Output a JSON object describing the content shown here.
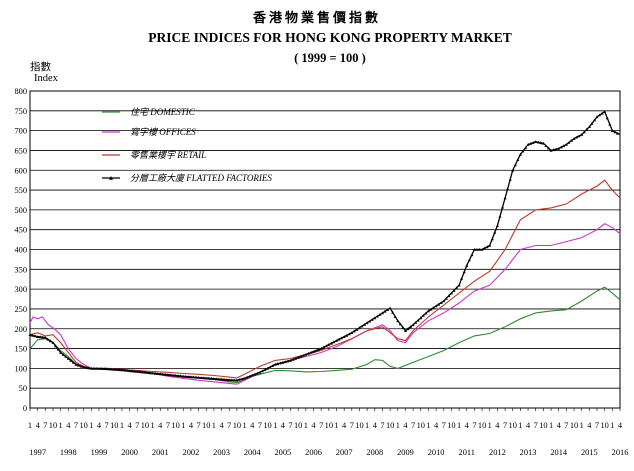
{
  "header": {
    "title_cn": "香港物業售價指數",
    "title_en": "PRICE INDICES FOR HONG KONG PROPERTY MARKET",
    "subtitle": "( 1999 = 100 )"
  },
  "axis": {
    "ylabel_cn": "指數",
    "ylabel_en": "Index"
  },
  "chart_data": {
    "type": "line",
    "title": "PRICE INDICES FOR HONG KONG PROPERTY MARKET",
    "subtitle": "( 1999 = 100 )",
    "ylabel": "Index",
    "xlabel": "",
    "ylim": [
      0,
      800
    ],
    "yticks": [
      0,
      50,
      100,
      150,
      200,
      250,
      300,
      350,
      400,
      450,
      500,
      550,
      600,
      650,
      700,
      750,
      800
    ],
    "xlim": [
      1997.0,
      2016.25
    ],
    "x_years": [
      "1997",
      "1998",
      "1999",
      "2000",
      "2001",
      "2002",
      "2003",
      "2004",
      "2005",
      "2006",
      "2007",
      "2008",
      "2009",
      "2010",
      "2011",
      "2012",
      "2013",
      "2014",
      "2015",
      "2016"
    ],
    "x_month_ticks": [
      "1",
      "4",
      "7",
      "10"
    ],
    "grid": "horizontal",
    "legend_position": "top-left",
    "series": [
      {
        "name": "DOMESTIC",
        "name_cn": "住宅",
        "color": "#2e8b2e",
        "marker": "none",
        "points": [
          [
            1997.0,
            150
          ],
          [
            1997.25,
            172
          ],
          [
            1997.5,
            175
          ],
          [
            1997.75,
            165
          ],
          [
            1998.0,
            145
          ],
          [
            1998.25,
            130
          ],
          [
            1998.5,
            110
          ],
          [
            1998.75,
            102
          ],
          [
            1999.0,
            100
          ],
          [
            1999.5,
            100
          ],
          [
            2000.0,
            96
          ],
          [
            2000.5,
            93
          ],
          [
            2001.0,
            88
          ],
          [
            2001.5,
            84
          ],
          [
            2002.0,
            80
          ],
          [
            2002.5,
            76
          ],
          [
            2003.0,
            72
          ],
          [
            2003.5,
            66
          ],
          [
            2003.75,
            64
          ],
          [
            2004.0,
            70
          ],
          [
            2004.25,
            80
          ],
          [
            2004.5,
            85
          ],
          [
            2005.0,
            95
          ],
          [
            2005.5,
            94
          ],
          [
            2006.0,
            91
          ],
          [
            2006.5,
            92
          ],
          [
            2007.0,
            95
          ],
          [
            2007.5,
            98
          ],
          [
            2008.0,
            110
          ],
          [
            2008.25,
            122
          ],
          [
            2008.5,
            120
          ],
          [
            2008.75,
            105
          ],
          [
            2009.0,
            100
          ],
          [
            2009.5,
            115
          ],
          [
            2010.0,
            130
          ],
          [
            2010.5,
            145
          ],
          [
            2011.0,
            165
          ],
          [
            2011.5,
            182
          ],
          [
            2012.0,
            188
          ],
          [
            2012.5,
            205
          ],
          [
            2013.0,
            225
          ],
          [
            2013.5,
            240
          ],
          [
            2014.0,
            245
          ],
          [
            2014.5,
            248
          ],
          [
            2015.0,
            270
          ],
          [
            2015.5,
            295
          ],
          [
            2015.75,
            305
          ],
          [
            2016.0,
            290
          ],
          [
            2016.25,
            273
          ]
        ]
      },
      {
        "name": "OFFICES",
        "name_cn": "寫字樓",
        "color": "#cc33cc",
        "marker": "none",
        "points": [
          [
            1997.0,
            215
          ],
          [
            1997.1,
            230
          ],
          [
            1997.25,
            225
          ],
          [
            1997.4,
            230
          ],
          [
            1997.6,
            210
          ],
          [
            1997.8,
            200
          ],
          [
            1998.0,
            185
          ],
          [
            1998.25,
            150
          ],
          [
            1998.5,
            125
          ],
          [
            1998.75,
            110
          ],
          [
            1999.0,
            100
          ],
          [
            1999.5,
            100
          ],
          [
            2000.0,
            98
          ],
          [
            2000.5,
            93
          ],
          [
            2001.0,
            88
          ],
          [
            2001.5,
            80
          ],
          [
            2002.0,
            75
          ],
          [
            2002.5,
            70
          ],
          [
            2003.0,
            66
          ],
          [
            2003.5,
            62
          ],
          [
            2003.75,
            60
          ],
          [
            2004.0,
            70
          ],
          [
            2004.5,
            90
          ],
          [
            2005.0,
            110
          ],
          [
            2005.5,
            120
          ],
          [
            2006.0,
            130
          ],
          [
            2006.5,
            140
          ],
          [
            2007.0,
            155
          ],
          [
            2007.5,
            175
          ],
          [
            2008.0,
            195
          ],
          [
            2008.5,
            210
          ],
          [
            2008.75,
            195
          ],
          [
            2009.0,
            170
          ],
          [
            2009.25,
            165
          ],
          [
            2009.5,
            190
          ],
          [
            2010.0,
            220
          ],
          [
            2010.5,
            240
          ],
          [
            2011.0,
            265
          ],
          [
            2011.5,
            295
          ],
          [
            2012.0,
            310
          ],
          [
            2012.5,
            350
          ],
          [
            2013.0,
            400
          ],
          [
            2013.5,
            410
          ],
          [
            2014.0,
            410
          ],
          [
            2014.5,
            420
          ],
          [
            2015.0,
            430
          ],
          [
            2015.5,
            450
          ],
          [
            2015.75,
            465
          ],
          [
            2016.0,
            455
          ],
          [
            2016.25,
            440
          ]
        ]
      },
      {
        "name": "RETAIL",
        "name_cn": "零售業樓宇",
        "color": "#c0392b",
        "marker": "none",
        "points": [
          [
            1997.0,
            185
          ],
          [
            1997.25,
            190
          ],
          [
            1997.5,
            182
          ],
          [
            1997.75,
            185
          ],
          [
            1998.0,
            165
          ],
          [
            1998.25,
            140
          ],
          [
            1998.5,
            115
          ],
          [
            1998.75,
            105
          ],
          [
            1999.0,
            100
          ],
          [
            1999.5,
            100
          ],
          [
            2000.0,
            97
          ],
          [
            2000.5,
            95
          ],
          [
            2001.0,
            92
          ],
          [
            2001.5,
            90
          ],
          [
            2002.0,
            87
          ],
          [
            2002.5,
            85
          ],
          [
            2003.0,
            82
          ],
          [
            2003.5,
            78
          ],
          [
            2003.75,
            76
          ],
          [
            2004.0,
            85
          ],
          [
            2004.5,
            105
          ],
          [
            2005.0,
            120
          ],
          [
            2005.5,
            125
          ],
          [
            2006.0,
            135
          ],
          [
            2006.5,
            145
          ],
          [
            2007.0,
            160
          ],
          [
            2007.5,
            175
          ],
          [
            2008.0,
            195
          ],
          [
            2008.5,
            205
          ],
          [
            2008.75,
            190
          ],
          [
            2009.0,
            175
          ],
          [
            2009.25,
            170
          ],
          [
            2009.5,
            195
          ],
          [
            2010.0,
            230
          ],
          [
            2010.5,
            260
          ],
          [
            2011.0,
            290
          ],
          [
            2011.5,
            320
          ],
          [
            2012.0,
            345
          ],
          [
            2012.5,
            400
          ],
          [
            2013.0,
            475
          ],
          [
            2013.5,
            500
          ],
          [
            2014.0,
            505
          ],
          [
            2014.5,
            515
          ],
          [
            2015.0,
            540
          ],
          [
            2015.5,
            560
          ],
          [
            2015.75,
            575
          ],
          [
            2016.0,
            550
          ],
          [
            2016.25,
            530
          ]
        ]
      },
      {
        "name": "FLATTED FACTORIES",
        "name_cn": "分層工廠大廈",
        "color": "#000000",
        "marker": "triangle",
        "points": [
          [
            1997.0,
            185
          ],
          [
            1997.25,
            180
          ],
          [
            1997.5,
            178
          ],
          [
            1997.75,
            165
          ],
          [
            1998.0,
            140
          ],
          [
            1998.25,
            125
          ],
          [
            1998.5,
            110
          ],
          [
            1998.75,
            103
          ],
          [
            1999.0,
            100
          ],
          [
            1999.5,
            99
          ],
          [
            2000.0,
            96
          ],
          [
            2000.5,
            92
          ],
          [
            2001.0,
            88
          ],
          [
            2001.5,
            84
          ],
          [
            2002.0,
            80
          ],
          [
            2002.5,
            77
          ],
          [
            2003.0,
            74
          ],
          [
            2003.5,
            71
          ],
          [
            2003.75,
            70
          ],
          [
            2004.0,
            75
          ],
          [
            2004.5,
            90
          ],
          [
            2005.0,
            110
          ],
          [
            2005.5,
            120
          ],
          [
            2006.0,
            135
          ],
          [
            2006.5,
            150
          ],
          [
            2007.0,
            170
          ],
          [
            2007.5,
            190
          ],
          [
            2008.0,
            215
          ],
          [
            2008.5,
            240
          ],
          [
            2008.75,
            252
          ],
          [
            2009.0,
            220
          ],
          [
            2009.25,
            195
          ],
          [
            2009.5,
            210
          ],
          [
            2010.0,
            245
          ],
          [
            2010.5,
            270
          ],
          [
            2011.0,
            310
          ],
          [
            2011.25,
            360
          ],
          [
            2011.5,
            400
          ],
          [
            2011.75,
            400
          ],
          [
            2012.0,
            410
          ],
          [
            2012.25,
            460
          ],
          [
            2012.5,
            530
          ],
          [
            2012.75,
            600
          ],
          [
            2013.0,
            640
          ],
          [
            2013.25,
            665
          ],
          [
            2013.5,
            672
          ],
          [
            2013.75,
            668
          ],
          [
            2014.0,
            650
          ],
          [
            2014.25,
            655
          ],
          [
            2014.5,
            665
          ],
          [
            2014.75,
            680
          ],
          [
            2015.0,
            690
          ],
          [
            2015.25,
            710
          ],
          [
            2015.5,
            735
          ],
          [
            2015.75,
            748
          ],
          [
            2016.0,
            700
          ],
          [
            2016.25,
            690
          ]
        ]
      }
    ]
  }
}
